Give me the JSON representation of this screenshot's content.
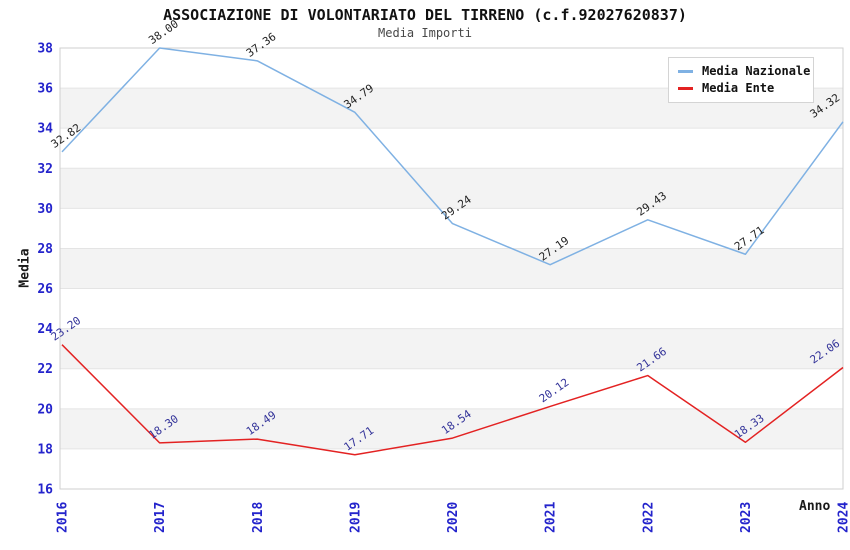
{
  "chart_data": {
    "type": "line",
    "title": "ASSOCIAZIONE DI VOLONTARIATO DEL TIRRENO (c.f.92027620837)",
    "subtitle": "Media Importi",
    "xlabel": "Anno",
    "ylabel": "Media",
    "categories": [
      "2016",
      "2017",
      "2018",
      "2019",
      "2020",
      "2021",
      "2022",
      "2023",
      "2024"
    ],
    "series": [
      {
        "name": "Media Nazionale",
        "color": "#7fb1e3",
        "label_color": "#1f1f1f",
        "values": [
          32.82,
          38.0,
          37.36,
          34.79,
          29.24,
          27.19,
          29.43,
          27.71,
          34.32
        ]
      },
      {
        "name": "Media Ente",
        "color": "#e32222",
        "label_color": "#333399",
        "values": [
          23.2,
          18.3,
          18.49,
          17.71,
          18.54,
          20.12,
          21.66,
          18.33,
          22.06
        ]
      }
    ],
    "ylim": [
      16,
      38
    ],
    "ytick_step": 2,
    "grid": true,
    "legend_position": "top-right",
    "band_color": "#f3f3f3",
    "gridline_color": "#e4e4e4",
    "plot_border_color": "#cfcfcf",
    "axis_tick_color": "#2424cc",
    "data_label_rotation_deg": -35
  }
}
